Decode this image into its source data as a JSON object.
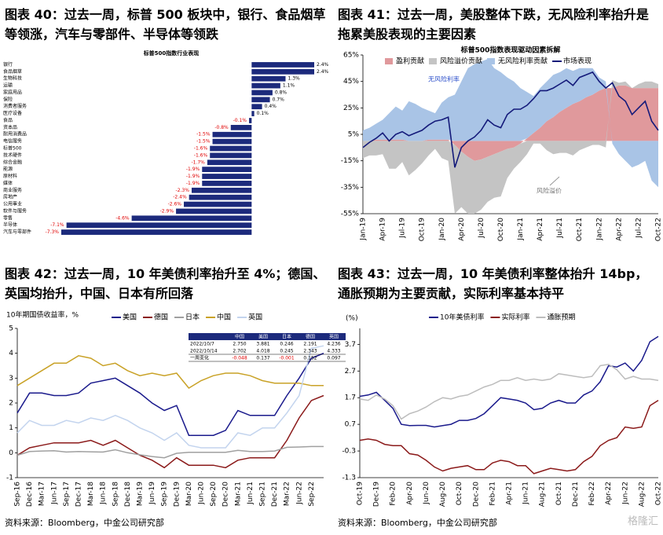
{
  "chart_data": [
    {
      "type": "bar",
      "orientation": "horizontal",
      "title": "图表 40：过去一周，标普 500 板块中，银行、食品烟草等领涨，汽车与零部件、半导体等领跌",
      "subtitle": "标普500指数行业表现",
      "categories": [
        "银行",
        "食品烟草",
        "生物科技",
        "运输",
        "家庭用品",
        "保险",
        "消费者服务",
        "医疗设备",
        "食品",
        "资本品",
        "耐用消费品",
        "电信服务",
        "标普500",
        "技术硬件",
        "综合金融",
        "能源",
        "原材料",
        "媒体",
        "商业服务",
        "房地产",
        "公用事业",
        "软件与服务",
        "零售",
        "半导体",
        "汽车与零部件"
      ],
      "values": [
        2.4,
        2.4,
        1.3,
        1.1,
        0.8,
        0.7,
        0.4,
        0.1,
        -0.1,
        -0.8,
        -1.5,
        -1.5,
        -1.6,
        -1.6,
        -1.7,
        -1.9,
        -1.9,
        -1.9,
        -2.3,
        -2.4,
        -2.6,
        -2.9,
        -4.6,
        -7.1,
        -7.3
      ],
      "value_labels": [
        "2.4%",
        "2.4%",
        "1.3%",
        "1.1%",
        "0.8%",
        "0.7%",
        "0.4%",
        "0.1%",
        "-0.1%",
        "-0.8%",
        "-1.5%",
        "-1.5%",
        "-1.6%",
        "-1.6%",
        "-1.7%",
        "-1.9%",
        "-1.9%",
        "-1.9%",
        "-2.3%",
        "-2.4%",
        "-2.6%",
        "-2.9%",
        "-4.6%",
        "-7.1%",
        "-7.3%"
      ],
      "color": "#1c2a7c",
      "label_colors": {
        "positive": "#000000",
        "negative": "#e00000"
      }
    },
    {
      "type": "area",
      "title": "图表 41：过去一周，美股整体下跌，无风险利率抬升是拖累美股表现的主要因素",
      "subtitle": "标普500指数表现驱动因素拆解",
      "categories": [
        "Jan-19",
        null,
        null,
        "Apr-19",
        null,
        null,
        "Jul-19",
        null,
        null,
        "Oct-19",
        null,
        null,
        "Jan-20",
        null,
        null,
        "Apr-20",
        null,
        null,
        "Jul-20",
        null,
        null,
        "Oct-20",
        null,
        null,
        "Jan-21",
        null,
        null,
        "Apr-21",
        null,
        null,
        "Jul-21",
        null,
        null,
        "Oct-21",
        null,
        null,
        "Jan-22",
        null,
        null,
        "Apr-22",
        null,
        null,
        "Jul-22",
        null,
        null,
        "Oct-22"
      ],
      "series": [
        {
          "name": "盈利贡献",
          "color": "#e0999c",
          "kind": "area",
          "values": [
            0,
            0,
            1,
            1,
            1,
            1,
            1,
            0,
            0,
            0,
            1,
            1,
            1,
            1,
            -3,
            -8,
            -12,
            -15,
            -14,
            -12,
            -10,
            -8,
            -6,
            -5,
            -2,
            2,
            6,
            10,
            15,
            18,
            22,
            25,
            28,
            30,
            33,
            35,
            38,
            40,
            40,
            42,
            42,
            40,
            40,
            40,
            40,
            40
          ]
        },
        {
          "name": "风险溢价贡献",
          "color": "#c4c4c4",
          "kind": "area",
          "values": [
            -13,
            -11,
            -11,
            -10,
            -21,
            -21,
            -16,
            -26,
            -22,
            -17,
            -11,
            -6,
            -13,
            -15,
            -52,
            -42,
            -43,
            -40,
            -38,
            -34,
            -33,
            -34,
            -22,
            -16,
            -14,
            -10,
            -2,
            -2,
            -7,
            -10,
            -9,
            -9,
            -11,
            -7,
            -5,
            -3,
            -3,
            -5,
            6,
            2,
            3,
            0,
            3,
            5,
            5,
            3
          ]
        },
        {
          "name": "无风险利率贡献",
          "color": "#a9c4e6",
          "kind": "area",
          "values": [
            8,
            10,
            12,
            15,
            20,
            25,
            22,
            30,
            28,
            25,
            22,
            20,
            28,
            32,
            35,
            45,
            55,
            58,
            60,
            62,
            55,
            52,
            48,
            45,
            40,
            35,
            28,
            30,
            30,
            32,
            30,
            30,
            25,
            25,
            22,
            20,
            10,
            5,
            -2,
            -10,
            -15,
            -20,
            -18,
            -15,
            -30,
            -35
          ]
        },
        {
          "name": "市场表现",
          "color": "#141a7a",
          "kind": "line",
          "values": [
            -5,
            -1,
            2,
            6,
            0,
            5,
            7,
            4,
            6,
            8,
            12,
            15,
            16,
            18,
            -20,
            -5,
            0,
            3,
            8,
            16,
            12,
            10,
            20,
            24,
            24,
            27,
            32,
            38,
            38,
            40,
            43,
            46,
            42,
            48,
            50,
            52,
            45,
            40,
            44,
            34,
            30,
            20,
            25,
            30,
            15,
            8
          ]
        }
      ],
      "ylim": [
        -55,
        65
      ],
      "yticks": [
        {
          "value": -55,
          "label": "-55%"
        },
        {
          "value": -35,
          "label": "-35%"
        },
        {
          "value": -15,
          "label": "-15%"
        },
        {
          "value": 5,
          "label": "5%"
        },
        {
          "value": 25,
          "label": "25%"
        },
        {
          "value": 45,
          "label": "45%"
        },
        {
          "value": 65,
          "label": "65%"
        }
      ],
      "annotations": [
        "无风险利率",
        "风险溢价"
      ]
    },
    {
      "type": "line",
      "title": "图表 42：过去一周，10 年美债利率抬升至 4%；德国、英国均抬升，中国、日本有所回落",
      "ylabel": "10年期国债收益率，%",
      "categories": [
        "Sep-16",
        "Dec-16",
        "Mar-17",
        "Jun-17",
        "Sep-17",
        "Dec-17",
        "Mar-18",
        "Jun-18",
        "Sep-18",
        "Dec-18",
        "Mar-19",
        "Jun-19",
        "Sep-19",
        "Dec-19",
        "Mar-20",
        "Jun-20",
        "Sep-20",
        "Dec-20",
        "Mar-21",
        "Jun-21",
        "Sep-21",
        "Dec-21",
        "Mar-22",
        "Jun-22",
        "Sep-22",
        null
      ],
      "series": [
        {
          "name": "美国",
          "color": "#1a1a8c",
          "values": [
            1.6,
            2.4,
            2.4,
            2.3,
            2.3,
            2.4,
            2.8,
            2.9,
            3.0,
            2.7,
            2.4,
            2.0,
            1.7,
            1.9,
            0.7,
            0.7,
            0.7,
            0.9,
            1.7,
            1.5,
            1.5,
            1.5,
            2.3,
            3.0,
            3.8,
            4.0
          ]
        },
        {
          "name": "德国",
          "color": "#8b1a1a",
          "values": [
            -0.1,
            0.2,
            0.3,
            0.4,
            0.4,
            0.4,
            0.5,
            0.3,
            0.5,
            0.2,
            -0.1,
            -0.3,
            -0.6,
            -0.2,
            -0.5,
            -0.5,
            -0.5,
            -0.6,
            -0.3,
            -0.2,
            -0.2,
            -0.2,
            0.5,
            1.4,
            2.1,
            2.3
          ]
        },
        {
          "name": "日本",
          "color": "#a0a0a0",
          "values": [
            -0.1,
            0.05,
            0.07,
            0.08,
            0.03,
            0.05,
            0.04,
            0.03,
            0.12,
            0.0,
            -0.08,
            -0.15,
            -0.2,
            -0.02,
            0.02,
            0.02,
            0.02,
            0.02,
            0.1,
            0.05,
            0.05,
            0.07,
            0.22,
            0.23,
            0.25,
            0.25
          ]
        },
        {
          "name": "中国",
          "color": "#c9a227",
          "values": [
            2.7,
            3.0,
            3.3,
            3.6,
            3.6,
            3.9,
            3.8,
            3.5,
            3.6,
            3.3,
            3.1,
            3.2,
            3.1,
            3.2,
            2.6,
            2.9,
            3.1,
            3.2,
            3.2,
            3.1,
            2.9,
            2.8,
            2.8,
            2.8,
            2.7,
            2.7
          ]
        },
        {
          "name": "英国",
          "color": "#c3d4ee",
          "values": [
            0.8,
            1.3,
            1.1,
            1.1,
            1.3,
            1.2,
            1.4,
            1.3,
            1.5,
            1.3,
            1.0,
            0.8,
            0.5,
            0.8,
            0.3,
            0.2,
            0.2,
            0.2,
            0.8,
            0.7,
            1.0,
            1.0,
            1.6,
            2.3,
            4.2,
            4.3
          ]
        }
      ],
      "ylim": [
        -1,
        5
      ],
      "yticks": [
        -1,
        0,
        1,
        2,
        3,
        4,
        5
      ],
      "table": {
        "columns": [
          "中国",
          "美国",
          "日本",
          "德国",
          "英国"
        ],
        "rows": [
          {
            "label": "2022/10/7",
            "values": [
              "2.750",
              "3.881",
              "0.246",
              "2.191",
              "4.236"
            ]
          },
          {
            "label": "2022/10/14",
            "values": [
              "2.702",
              "4.018",
              "0.245",
              "2.343",
              "4.333"
            ]
          },
          {
            "label": "一周变化",
            "values": [
              "-0.048",
              "0.137",
              "-0.001",
              "0.152",
              "0.097"
            ]
          }
        ]
      }
    },
    {
      "type": "line",
      "title": "图表 43：过去一周，10 年美债利率整体抬升 14bp，通胀预期为主要贡献，实际利率基本持平",
      "ylabel": "(%)",
      "categories": [
        "Oct-19",
        null,
        "Dec-19",
        null,
        "Feb-20",
        null,
        "Apr-20",
        null,
        "Jun-20",
        null,
        "Aug-20",
        null,
        "Oct-20",
        null,
        "Dec-20",
        null,
        "Feb-21",
        null,
        "Apr-21",
        null,
        "Jun-21",
        null,
        "Aug-21",
        null,
        "Oct-21",
        null,
        "Dec-21",
        null,
        "Feb-22",
        null,
        "Apr-22",
        null,
        "Jun-22",
        null,
        "Aug-22",
        null,
        "Oct-22"
      ],
      "series": [
        {
          "name": "10年美债利率",
          "color": "#1a1a8c",
          "values": [
            1.75,
            1.8,
            1.9,
            1.6,
            1.3,
            0.7,
            0.65,
            0.66,
            0.66,
            0.6,
            0.65,
            0.7,
            0.85,
            0.85,
            0.92,
            1.1,
            1.4,
            1.7,
            1.65,
            1.6,
            1.5,
            1.25,
            1.3,
            1.5,
            1.6,
            1.5,
            1.5,
            1.8,
            1.95,
            2.3,
            2.9,
            2.85,
            3.0,
            2.7,
            3.1,
            3.8,
            4.0
          ]
        },
        {
          "name": "实际利率",
          "color": "#8b1a1a",
          "values": [
            0.1,
            0.15,
            0.1,
            -0.05,
            -0.1,
            -0.1,
            -0.4,
            -0.45,
            -0.65,
            -0.9,
            -1.05,
            -0.95,
            -0.9,
            -0.85,
            -1.0,
            -1.0,
            -0.75,
            -0.65,
            -0.7,
            -0.85,
            -0.85,
            -1.15,
            -1.05,
            -0.95,
            -1.0,
            -1.05,
            -1.0,
            -0.7,
            -0.5,
            -0.1,
            0.1,
            0.2,
            0.6,
            0.55,
            0.6,
            1.4,
            1.6
          ]
        },
        {
          "name": "通胀预期",
          "color": "#bdbdbd",
          "values": [
            1.65,
            1.6,
            1.8,
            1.65,
            1.4,
            0.9,
            1.1,
            1.2,
            1.35,
            1.55,
            1.7,
            1.65,
            1.75,
            1.8,
            1.95,
            2.1,
            2.2,
            2.35,
            2.35,
            2.45,
            2.35,
            2.4,
            2.35,
            2.4,
            2.6,
            2.55,
            2.5,
            2.45,
            2.5,
            2.9,
            2.95,
            2.75,
            2.4,
            2.5,
            2.4,
            2.4,
            2.35
          ]
        }
      ],
      "ylim": [
        -1.3,
        4.3
      ],
      "yticks": [
        -1.3,
        -0.3,
        0.7,
        1.7,
        2.7,
        3.7
      ]
    }
  ],
  "source": "资料来源：Bloomberg，中金公司研究部",
  "watermark": "格隆汇"
}
